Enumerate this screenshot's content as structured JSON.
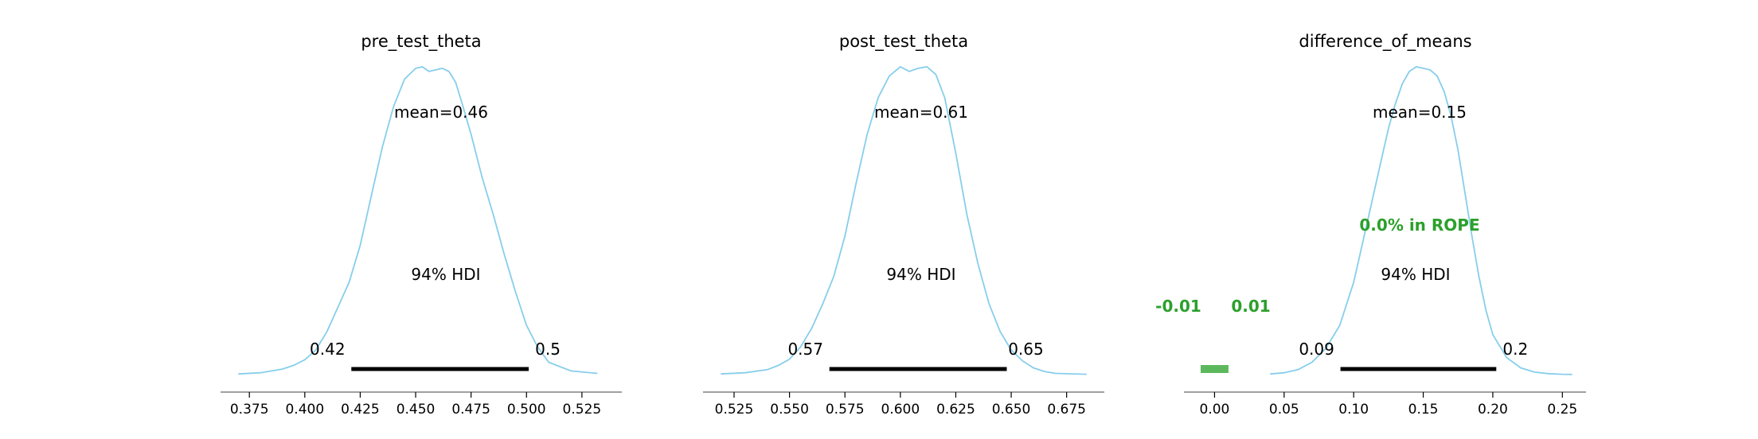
{
  "chart_data": [
    {
      "type": "area",
      "title": "pre_test_theta",
      "mean_label": "mean=0.46",
      "hdi_label": "94% HDI",
      "hdi": [
        0.421,
        0.501
      ],
      "hdi_low_label": "0.42",
      "hdi_high_label": "0.5",
      "xlim": [
        0.362,
        0.543
      ],
      "ticks": [
        0.375,
        0.4,
        0.425,
        0.45,
        0.475,
        0.5,
        0.525
      ],
      "tick_labels": [
        "0.375",
        "0.400",
        "0.425",
        "0.450",
        "0.475",
        "0.500",
        "0.525"
      ],
      "kde": {
        "x": [
          0.37,
          0.38,
          0.39,
          0.395,
          0.4,
          0.405,
          0.41,
          0.415,
          0.42,
          0.425,
          0.43,
          0.435,
          0.44,
          0.445,
          0.45,
          0.453,
          0.456,
          0.459,
          0.462,
          0.465,
          0.468,
          0.471,
          0.475,
          0.48,
          0.485,
          0.49,
          0.495,
          0.5,
          0.505,
          0.51,
          0.52,
          0.532
        ],
        "density": [
          0.002,
          0.006,
          0.018,
          0.03,
          0.048,
          0.08,
          0.14,
          0.22,
          0.3,
          0.42,
          0.58,
          0.74,
          0.87,
          0.96,
          0.995,
          1.0,
          0.985,
          0.99,
          0.995,
          0.985,
          0.95,
          0.88,
          0.78,
          0.64,
          0.52,
          0.39,
          0.27,
          0.16,
          0.09,
          0.04,
          0.012,
          0.004
        ]
      },
      "curve_color": "#87ceeb",
      "hdi_color": "#000000"
    },
    {
      "type": "area",
      "title": "post_test_theta",
      "mean_label": "mean=0.61",
      "hdi_label": "94% HDI",
      "hdi": [
        0.568,
        0.648
      ],
      "hdi_low_label": "0.57",
      "hdi_high_label": "0.65",
      "xlim": [
        0.511,
        0.692
      ],
      "ticks": [
        0.525,
        0.55,
        0.575,
        0.6,
        0.625,
        0.65,
        0.675
      ],
      "tick_labels": [
        "0.525",
        "0.550",
        "0.575",
        "0.600",
        "0.625",
        "0.650",
        "0.675"
      ],
      "kde": {
        "x": [
          0.519,
          0.53,
          0.54,
          0.545,
          0.55,
          0.555,
          0.56,
          0.565,
          0.57,
          0.575,
          0.58,
          0.585,
          0.59,
          0.595,
          0.6,
          0.604,
          0.608,
          0.612,
          0.616,
          0.62,
          0.625,
          0.63,
          0.635,
          0.64,
          0.645,
          0.65,
          0.655,
          0.66,
          0.665,
          0.67,
          0.684
        ],
        "density": [
          0.002,
          0.006,
          0.016,
          0.03,
          0.05,
          0.09,
          0.15,
          0.23,
          0.32,
          0.45,
          0.62,
          0.78,
          0.9,
          0.97,
          1.0,
          0.985,
          0.995,
          1.0,
          0.975,
          0.9,
          0.72,
          0.52,
          0.36,
          0.23,
          0.14,
          0.08,
          0.045,
          0.022,
          0.01,
          0.004,
          0.001
        ]
      },
      "curve_color": "#87ceeb",
      "hdi_color": "#000000"
    },
    {
      "type": "area",
      "title": "difference_of_means",
      "mean_label": "mean=0.15",
      "hdi_label": "94% HDI",
      "hdi": [
        0.0905,
        0.2025
      ],
      "hdi_low_label": "0.09",
      "hdi_high_label": "0.2",
      "xlim": [
        -0.022,
        0.267
      ],
      "ticks": [
        0.0,
        0.05,
        0.1,
        0.15,
        0.2,
        0.25
      ],
      "tick_labels": [
        "0.00",
        "0.05",
        "0.10",
        "0.15",
        "0.20",
        "0.25"
      ],
      "kde": {
        "x": [
          0.04,
          0.05,
          0.06,
          0.07,
          0.08,
          0.09,
          0.1,
          0.11,
          0.12,
          0.125,
          0.13,
          0.135,
          0.14,
          0.145,
          0.15,
          0.155,
          0.16,
          0.165,
          0.17,
          0.175,
          0.18,
          0.185,
          0.19,
          0.195,
          0.2,
          0.21,
          0.22,
          0.23,
          0.24,
          0.25,
          0.257
        ],
        "density": [
          0.002,
          0.006,
          0.016,
          0.04,
          0.085,
          0.16,
          0.3,
          0.5,
          0.7,
          0.8,
          0.88,
          0.945,
          0.985,
          1.0,
          0.995,
          0.99,
          0.97,
          0.92,
          0.84,
          0.73,
          0.59,
          0.45,
          0.32,
          0.21,
          0.13,
          0.055,
          0.022,
          0.008,
          0.003,
          0.001,
          0.0005
        ]
      },
      "curve_color": "#87ceeb",
      "hdi_color": "#000000",
      "rope": [
        -0.01,
        0.01
      ],
      "rope_low_label": "-0.01",
      "rope_high_label": "0.01",
      "rope_text": "0.0% in ROPE",
      "rope_color": "#2ca02c",
      "rope_bar_color": "#5cb85c"
    }
  ]
}
